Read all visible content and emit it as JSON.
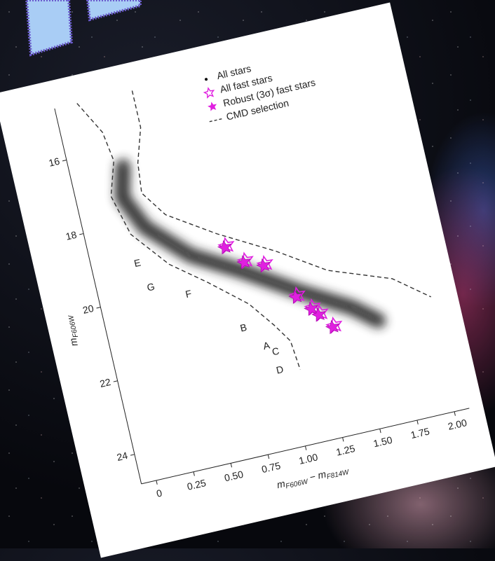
{
  "chart_data": {
    "type": "scatter",
    "y_label": [
      "m",
      "F606W"
    ],
    "x_label": [
      "m",
      "F606W",
      "− m",
      "F814W"
    ],
    "xlim": [
      -0.1,
      2.1
    ],
    "ylim": [
      24.8,
      14.6
    ],
    "xticks": [
      0,
      0.25,
      {
        "value": 0.5,
        "label": "0.50"
      },
      0.75,
      {
        "value": 1,
        "label": "1.00"
      },
      1.25,
      {
        "value": 1.5,
        "label": "1.50"
      },
      1.75,
      {
        "value": 2,
        "label": "2.00"
      }
    ],
    "yticks": [
      16,
      18,
      20,
      22,
      24
    ],
    "annotations": [
      "A",
      "B",
      "C",
      "D",
      "E",
      "F",
      "G"
    ],
    "series": [
      {
        "name": "All stars",
        "color": "#000000",
        "marker": "dot"
      },
      {
        "name": "All fast stars",
        "color": "#e020e0",
        "marker": "open-star",
        "x": [
          0.78,
          0.88,
          1.0,
          1.16,
          1.24,
          1.28,
          1.35
        ],
        "values": [
          19.2,
          19.7,
          19.9,
          20.9,
          21.3,
          21.5,
          21.9
        ]
      },
      {
        "name": "Robust (3σ) fast stars",
        "color": "#e020e0",
        "marker": "star",
        "x": [
          0.78,
          0.88,
          1.0,
          1.16,
          1.24,
          1.28,
          1.35
        ],
        "values": [
          19.2,
          19.7,
          19.9,
          20.9,
          21.3,
          21.5,
          21.9
        ]
      },
      {
        "name": "CMD selection",
        "color": "#333333",
        "marker": "dashed",
        "lines": [
          {
            "x": [
              0.05,
              0.17,
              0.2,
              0.13,
              0.2,
              0.4,
              0.62,
              0.85,
              0.98,
              1.06,
              1.08
            ],
            "values": [
              14.6,
              15.5,
              16.3,
              17.2,
              18.3,
              19.3,
              20.0,
              20.8,
              21.5,
              22.0,
              22.8
            ]
          },
          {
            "x": [
              0.42,
              0.42,
              0.35,
              0.33,
              0.45,
              0.75,
              1.1,
              1.4,
              1.8,
              2.02
            ],
            "values": [
              14.6,
              15.6,
              16.5,
              17.3,
              18.0,
              18.8,
              19.6,
              20.4,
              21.0,
              21.7
            ]
          }
        ]
      }
    ]
  }
}
